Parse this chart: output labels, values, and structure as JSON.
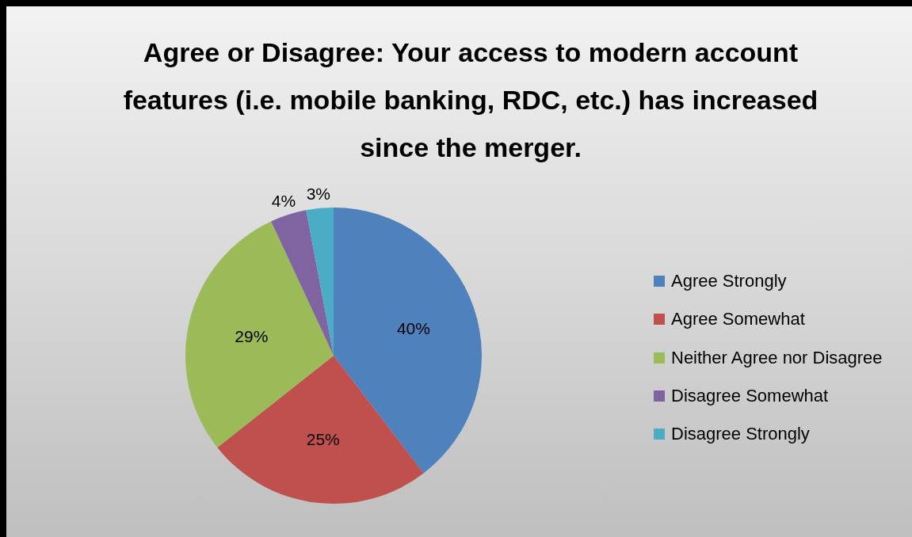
{
  "chart_data": {
    "type": "pie",
    "title": "Agree or Disagree: Your access to modern account features (i.e. mobile banking, RDC, etc.) has increased since the merger.",
    "categories": [
      "Agree Strongly",
      "Agree Somewhat",
      "Neither Agree nor Disagree",
      "Disagree Somewhat",
      "Disagree Strongly"
    ],
    "values": [
      40,
      25,
      29,
      4,
      3
    ],
    "colors": [
      "#4f81bd",
      "#c0504d",
      "#9bbb59",
      "#8064a2",
      "#4bacc6"
    ],
    "value_labels": [
      "40%",
      "25%",
      "29%",
      "4%",
      "3%"
    ],
    "legend": "right"
  }
}
